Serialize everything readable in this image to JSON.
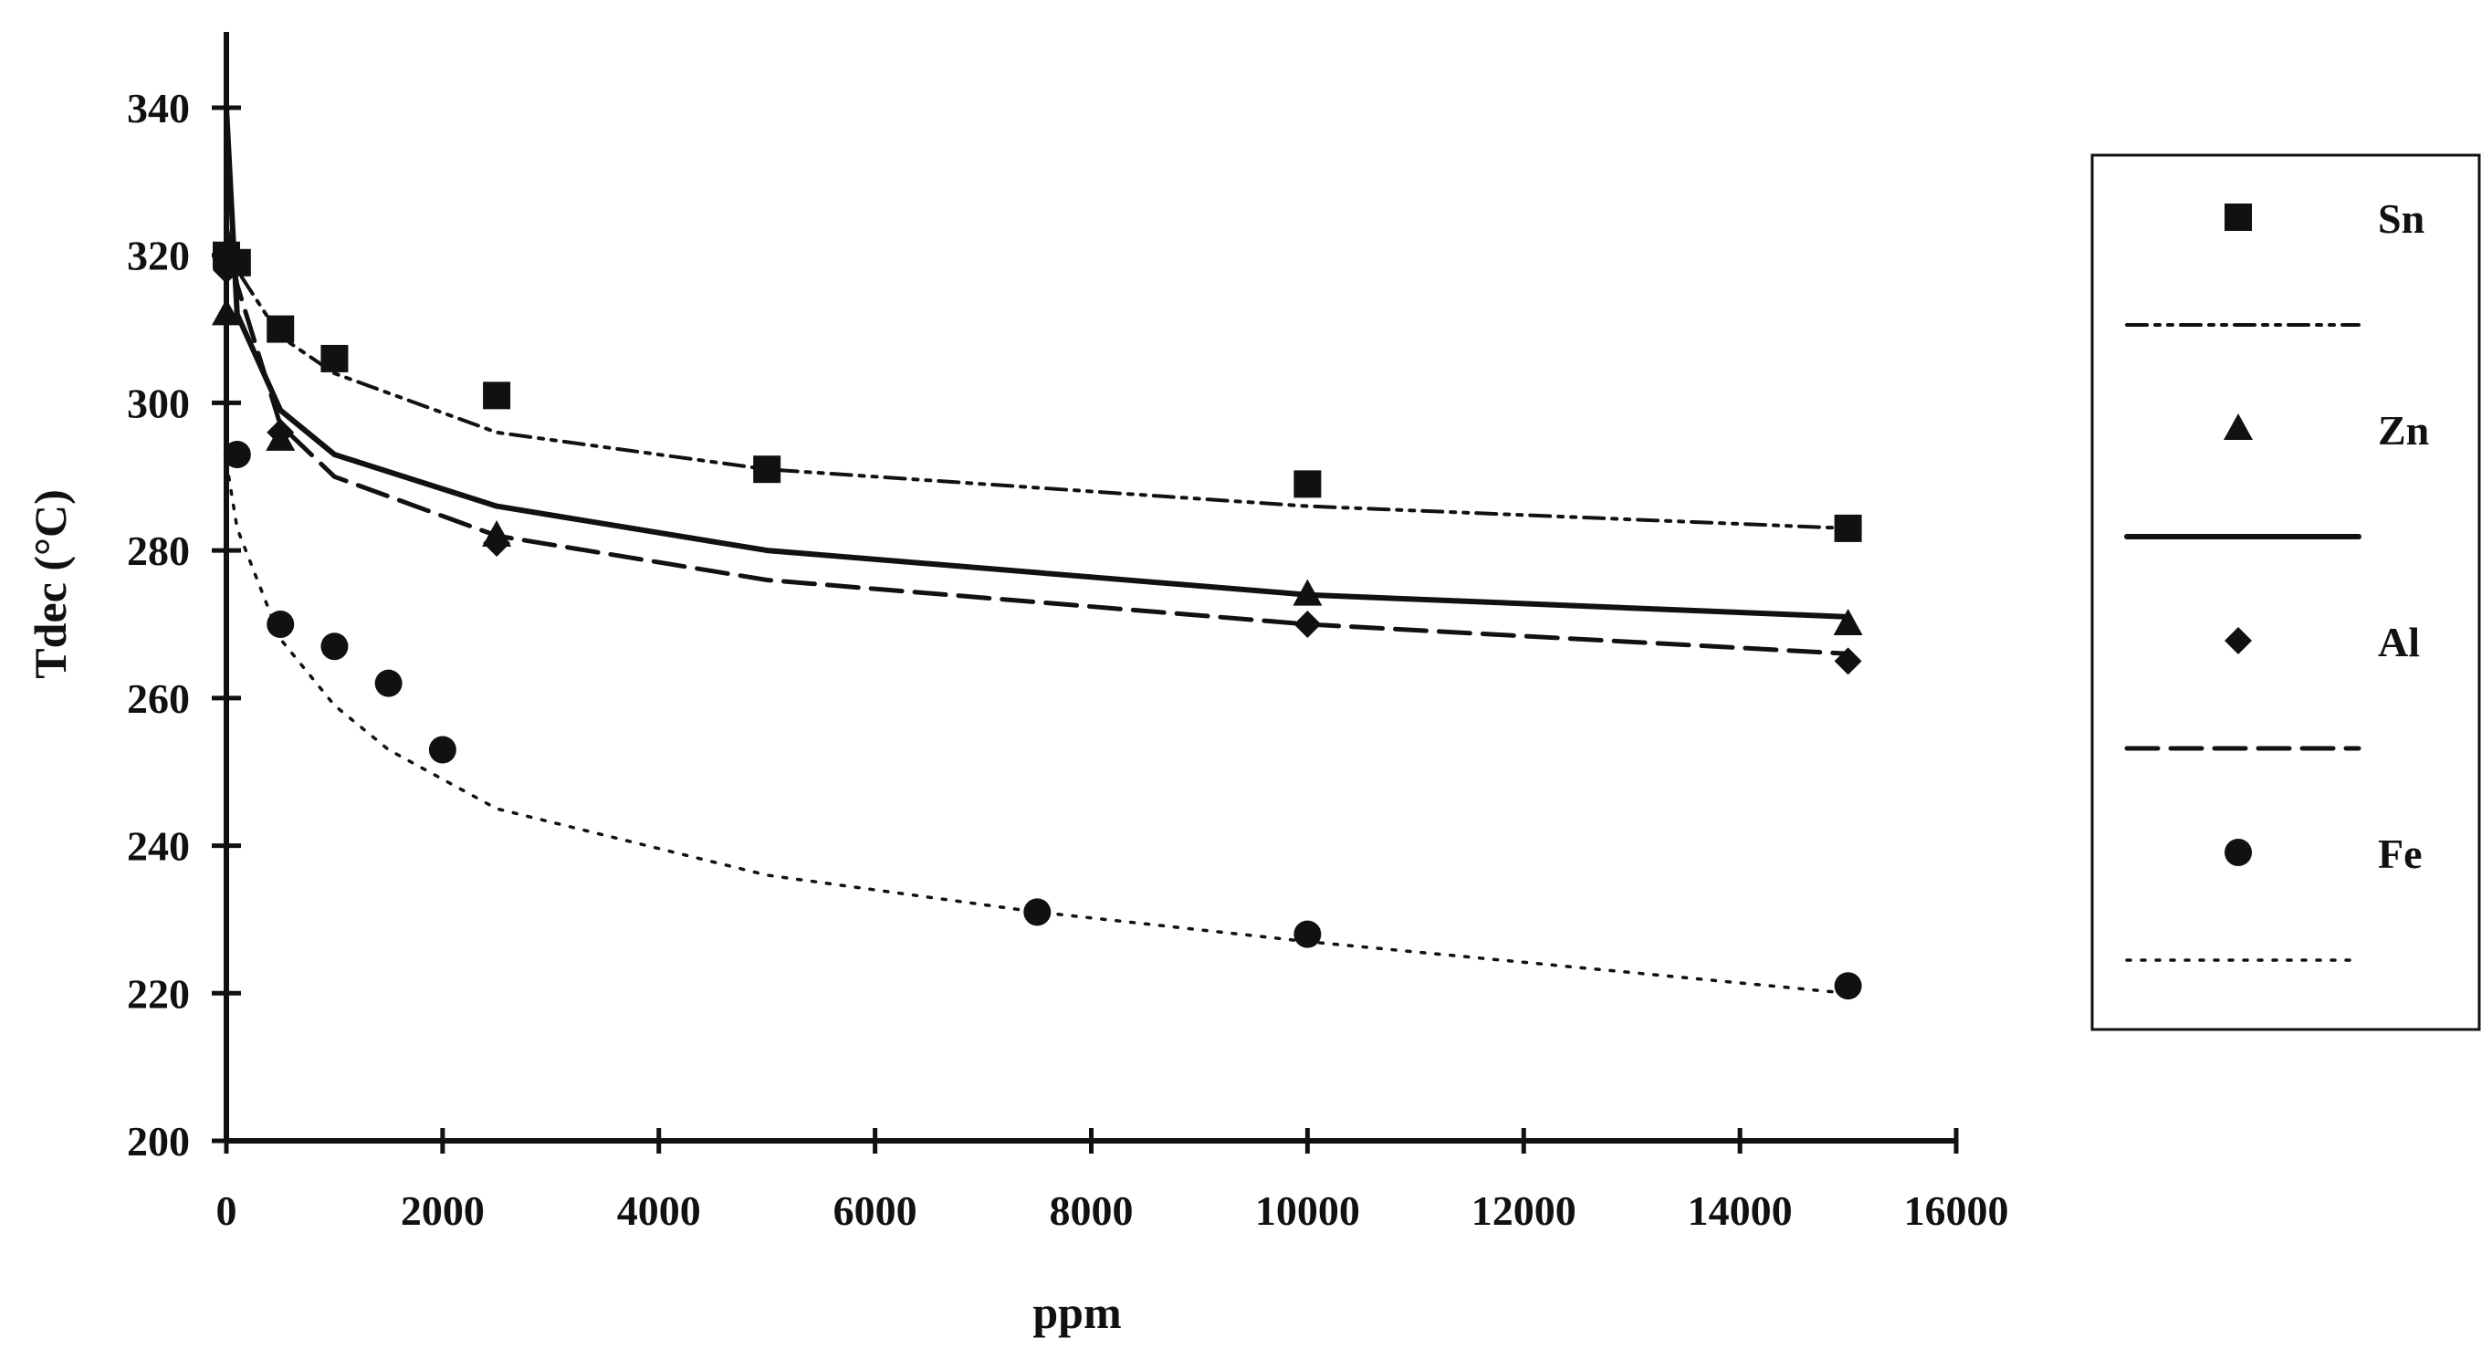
{
  "chart_data": {
    "type": "scatter",
    "xlabel": "ppm",
    "ylabel": "Tdec (°C)",
    "xlim": [
      0,
      16000
    ],
    "ylim": [
      200,
      340
    ],
    "x_ticks": [
      "0",
      "2000",
      "4000",
      "6000",
      "8000",
      "10000",
      "12000",
      "14000",
      "16000"
    ],
    "y_ticks": [
      "200",
      "220",
      "240",
      "260",
      "280",
      "300",
      "320",
      "340"
    ],
    "grid": false,
    "legend_position": "right",
    "series": [
      {
        "name": "Sn",
        "marker": "square",
        "line_style": "dash-dot",
        "points": [
          [
            0,
            320
          ],
          [
            100,
            319
          ],
          [
            500,
            310
          ],
          [
            1000,
            306
          ],
          [
            2500,
            301
          ],
          [
            5000,
            291
          ],
          [
            10000,
            289
          ],
          [
            15000,
            283
          ]
        ],
        "trend": [
          [
            0,
            324
          ],
          [
            100,
            318
          ],
          [
            500,
            309
          ],
          [
            1000,
            304
          ],
          [
            2500,
            296
          ],
          [
            5000,
            291
          ],
          [
            10000,
            286
          ],
          [
            15000,
            283
          ]
        ]
      },
      {
        "name": "Zn",
        "marker": "triangle",
        "line_style": "solid",
        "points": [
          [
            0,
            312
          ],
          [
            500,
            295
          ],
          [
            2500,
            282
          ],
          [
            10000,
            274
          ],
          [
            15000,
            270
          ]
        ],
        "trend": [
          [
            0,
            340
          ],
          [
            100,
            312
          ],
          [
            500,
            299
          ],
          [
            1000,
            293
          ],
          [
            2500,
            286
          ],
          [
            5000,
            280
          ],
          [
            10000,
            274
          ],
          [
            15000,
            271
          ]
        ]
      },
      {
        "name": "Al",
        "marker": "diamond",
        "line_style": "dashed",
        "points": [
          [
            0,
            318
          ],
          [
            500,
            296
          ],
          [
            2500,
            281
          ],
          [
            10000,
            270
          ],
          [
            15000,
            265
          ]
        ],
        "trend": [
          [
            0,
            324
          ],
          [
            100,
            316
          ],
          [
            500,
            297
          ],
          [
            1000,
            290
          ],
          [
            2500,
            282
          ],
          [
            5000,
            276
          ],
          [
            10000,
            270
          ],
          [
            15000,
            266
          ]
        ]
      },
      {
        "name": "Fe",
        "marker": "circle",
        "line_style": "dotted",
        "points": [
          [
            100,
            293
          ],
          [
            500,
            270
          ],
          [
            1000,
            267
          ],
          [
            1500,
            262
          ],
          [
            2000,
            253
          ],
          [
            7500,
            231
          ],
          [
            10000,
            228
          ],
          [
            15000,
            221
          ]
        ],
        "trend": [
          [
            0,
            292
          ],
          [
            100,
            283
          ],
          [
            500,
            268
          ],
          [
            1000,
            259
          ],
          [
            1500,
            253
          ],
          [
            2000,
            249
          ],
          [
            2500,
            245
          ],
          [
            5000,
            236
          ],
          [
            7500,
            231
          ],
          [
            10000,
            227
          ],
          [
            15000,
            220
          ]
        ]
      }
    ]
  }
}
